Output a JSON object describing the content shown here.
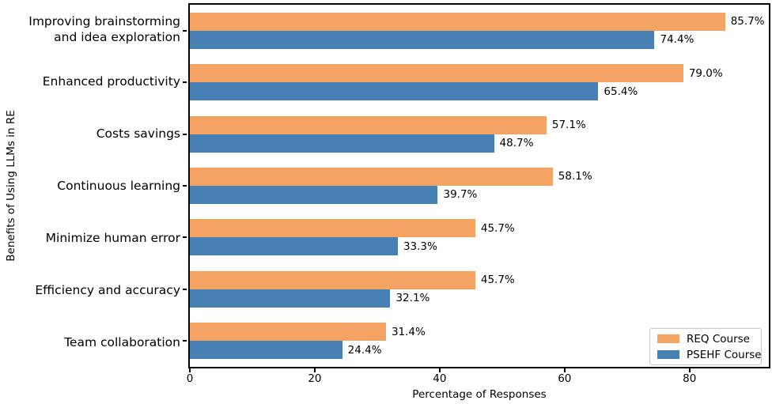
{
  "chart_data": {
    "type": "bar",
    "orientation": "horizontal",
    "title": "",
    "xlabel": "Percentage of Responses",
    "ylabel": "Benefits of Using LLMs in RE",
    "categories": [
      "Improving brainstorming\nand idea exploration",
      "Enhanced productivity",
      "Costs savings",
      "Continuous learning",
      "Minimize human error",
      "Efficiency and accuracy",
      "Team collaboration"
    ],
    "series": [
      {
        "name": "REQ Course",
        "color": "#f4a462",
        "values": [
          85.7,
          79.0,
          57.1,
          58.1,
          45.7,
          45.7,
          31.4
        ]
      },
      {
        "name": "PSEHF Course",
        "color": "#4781b4",
        "values": [
          74.4,
          65.4,
          48.7,
          39.7,
          33.3,
          32.1,
          24.4
        ]
      }
    ],
    "value_label_format": "{value}%",
    "xticks": [
      0,
      20,
      40,
      60,
      80
    ],
    "xlim": [
      0,
      92.7
    ],
    "grid": false,
    "legend": {
      "position": "lower right"
    }
  }
}
